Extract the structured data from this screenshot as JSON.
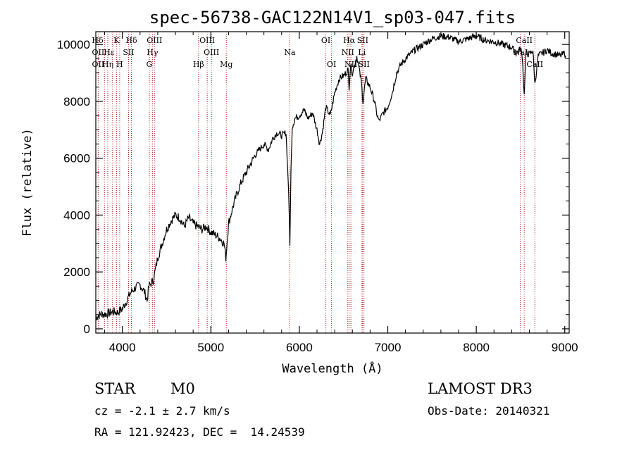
{
  "chart_data": {
    "type": "line",
    "title": "spec-56738-GAC122N14V1_sp03-047.fits",
    "xlabel": "Wavelength (Å)",
    "ylabel": "Flux (relative)",
    "xlim": [
      3700,
      9050
    ],
    "ylim": [
      -150,
      10450
    ],
    "xticks": [
      4000,
      5000,
      6000,
      7000,
      8000,
      9000
    ],
    "yticks": [
      0,
      2000,
      4000,
      6000,
      8000,
      10000
    ],
    "series": [
      {
        "name": "spectrum",
        "x": [
          3700,
          3750,
          3800,
          3850,
          3900,
          3950,
          4000,
          4050,
          4100,
          4150,
          4200,
          4250,
          4280,
          4300,
          4350,
          4400,
          4450,
          4500,
          4550,
          4600,
          4650,
          4700,
          4750,
          4800,
          4850,
          4900,
          4950,
          5000,
          5050,
          5100,
          5150,
          5170,
          5185,
          5200,
          5250,
          5300,
          5350,
          5400,
          5450,
          5500,
          5550,
          5600,
          5650,
          5700,
          5750,
          5800,
          5850,
          5880,
          5893,
          5905,
          5920,
          5950,
          6000,
          6050,
          6100,
          6150,
          6200,
          6230,
          6260,
          6300,
          6350,
          6400,
          6450,
          6500,
          6550,
          6563,
          6580,
          6600,
          6650,
          6700,
          6720,
          6750,
          6800,
          6850,
          6880,
          6900,
          6950,
          7000,
          7050,
          7100,
          7150,
          7200,
          7300,
          7400,
          7500,
          7600,
          7700,
          7800,
          7900,
          8000,
          8100,
          8200,
          8300,
          8400,
          8450,
          8500,
          8520,
          8542,
          8560,
          8600,
          8640,
          8662,
          8700,
          8750,
          8800,
          8850,
          8900,
          8950,
          9000,
          9010
        ],
        "y": [
          400,
          500,
          520,
          550,
          600,
          580,
          700,
          1000,
          1300,
          1450,
          1550,
          1300,
          1000,
          1500,
          1700,
          2500,
          3000,
          3500,
          3800,
          4000,
          3900,
          3600,
          3900,
          3700,
          3600,
          3500,
          3600,
          3400,
          3300,
          3200,
          3000,
          2500,
          3100,
          3700,
          4300,
          4800,
          5200,
          5500,
          5800,
          6100,
          6300,
          6500,
          6300,
          6700,
          6900,
          6800,
          6900,
          4800,
          2900,
          5500,
          7100,
          7400,
          7500,
          7700,
          7400,
          7600,
          7000,
          6500,
          6900,
          7800,
          7500,
          8300,
          8800,
          8900,
          9100,
          8500,
          9300,
          9000,
          9600,
          8700,
          8000,
          8800,
          8500,
          8000,
          7500,
          7300,
          7600,
          7800,
          8300,
          9000,
          9300,
          9500,
          9800,
          10000,
          10200,
          10300,
          10250,
          10100,
          10200,
          10300,
          10150,
          10100,
          10000,
          9900,
          9700,
          9850,
          9600,
          8200,
          9700,
          9650,
          9800,
          8600,
          9600,
          9700,
          9800,
          9700,
          9650,
          9600,
          9700,
          9600
        ]
      }
    ],
    "annotations": [
      {
        "label": "Hδ",
        "x": 3720,
        "row": 0
      },
      {
        "label": "OII",
        "x": 3727,
        "row": 1
      },
      {
        "label": "OII",
        "x": 3727,
        "row": 2
      },
      {
        "label": "Hε",
        "x": 3850,
        "row": 1
      },
      {
        "label": "Hη",
        "x": 3835,
        "row": 2
      },
      {
        "label": "K",
        "x": 3934,
        "row": 0
      },
      {
        "label": "H",
        "x": 3969,
        "row": 2
      },
      {
        "label": "Hδ",
        "x": 4102,
        "row": 0
      },
      {
        "label": "SII",
        "x": 4070,
        "row": 1
      },
      {
        "label": "OIII",
        "x": 4363,
        "row": 0
      },
      {
        "label": "Hγ",
        "x": 4340,
        "row": 1
      },
      {
        "label": "G",
        "x": 4305,
        "row": 2
      },
      {
        "label": "OIII",
        "x": 4959,
        "row": 0
      },
      {
        "label": "OIII",
        "x": 5007,
        "row": 1
      },
      {
        "label": "Hβ",
        "x": 4861,
        "row": 2
      },
      {
        "label": "Mg",
        "x": 5175,
        "row": 2
      },
      {
        "label": "Na",
        "x": 5893,
        "row": 1
      },
      {
        "label": "OI",
        "x": 6300,
        "row": 0
      },
      {
        "label": "OI",
        "x": 6364,
        "row": 2
      },
      {
        "label": "Hα",
        "x": 6563,
        "row": 0
      },
      {
        "label": "NII",
        "x": 6548,
        "row": 1
      },
      {
        "label": "NII",
        "x": 6583,
        "row": 2
      },
      {
        "label": "SII",
        "x": 6716,
        "row": 0
      },
      {
        "label": "Li",
        "x": 6708,
        "row": 1
      },
      {
        "label": "SII",
        "x": 6731,
        "row": 2
      },
      {
        "label": "CaII",
        "x": 8542,
        "row": 0
      },
      {
        "label": "NaI",
        "x": 8500,
        "row": 1
      },
      {
        "label": "CaII",
        "x": 8662,
        "row": 2
      }
    ],
    "marker_lines": [
      3727,
      3798,
      3835,
      3889,
      3934,
      3970,
      4070,
      4102,
      4305,
      4340,
      4363,
      4861,
      4959,
      5007,
      5175,
      5893,
      6300,
      6364,
      6548,
      6563,
      6583,
      6708,
      6716,
      6731,
      8498,
      8542,
      8662
    ]
  },
  "info": {
    "object_class": "STAR",
    "subclass": "M0",
    "survey": "LAMOST DR3",
    "redshift": "cz = -2.1 ± 2.7 km/s",
    "obs_date": "Obs-Date: 20140321",
    "coords": "RA = 121.92423, DEC =  14.24539"
  },
  "colors": {
    "marker": "#b22222",
    "spectrum": "#000000"
  }
}
